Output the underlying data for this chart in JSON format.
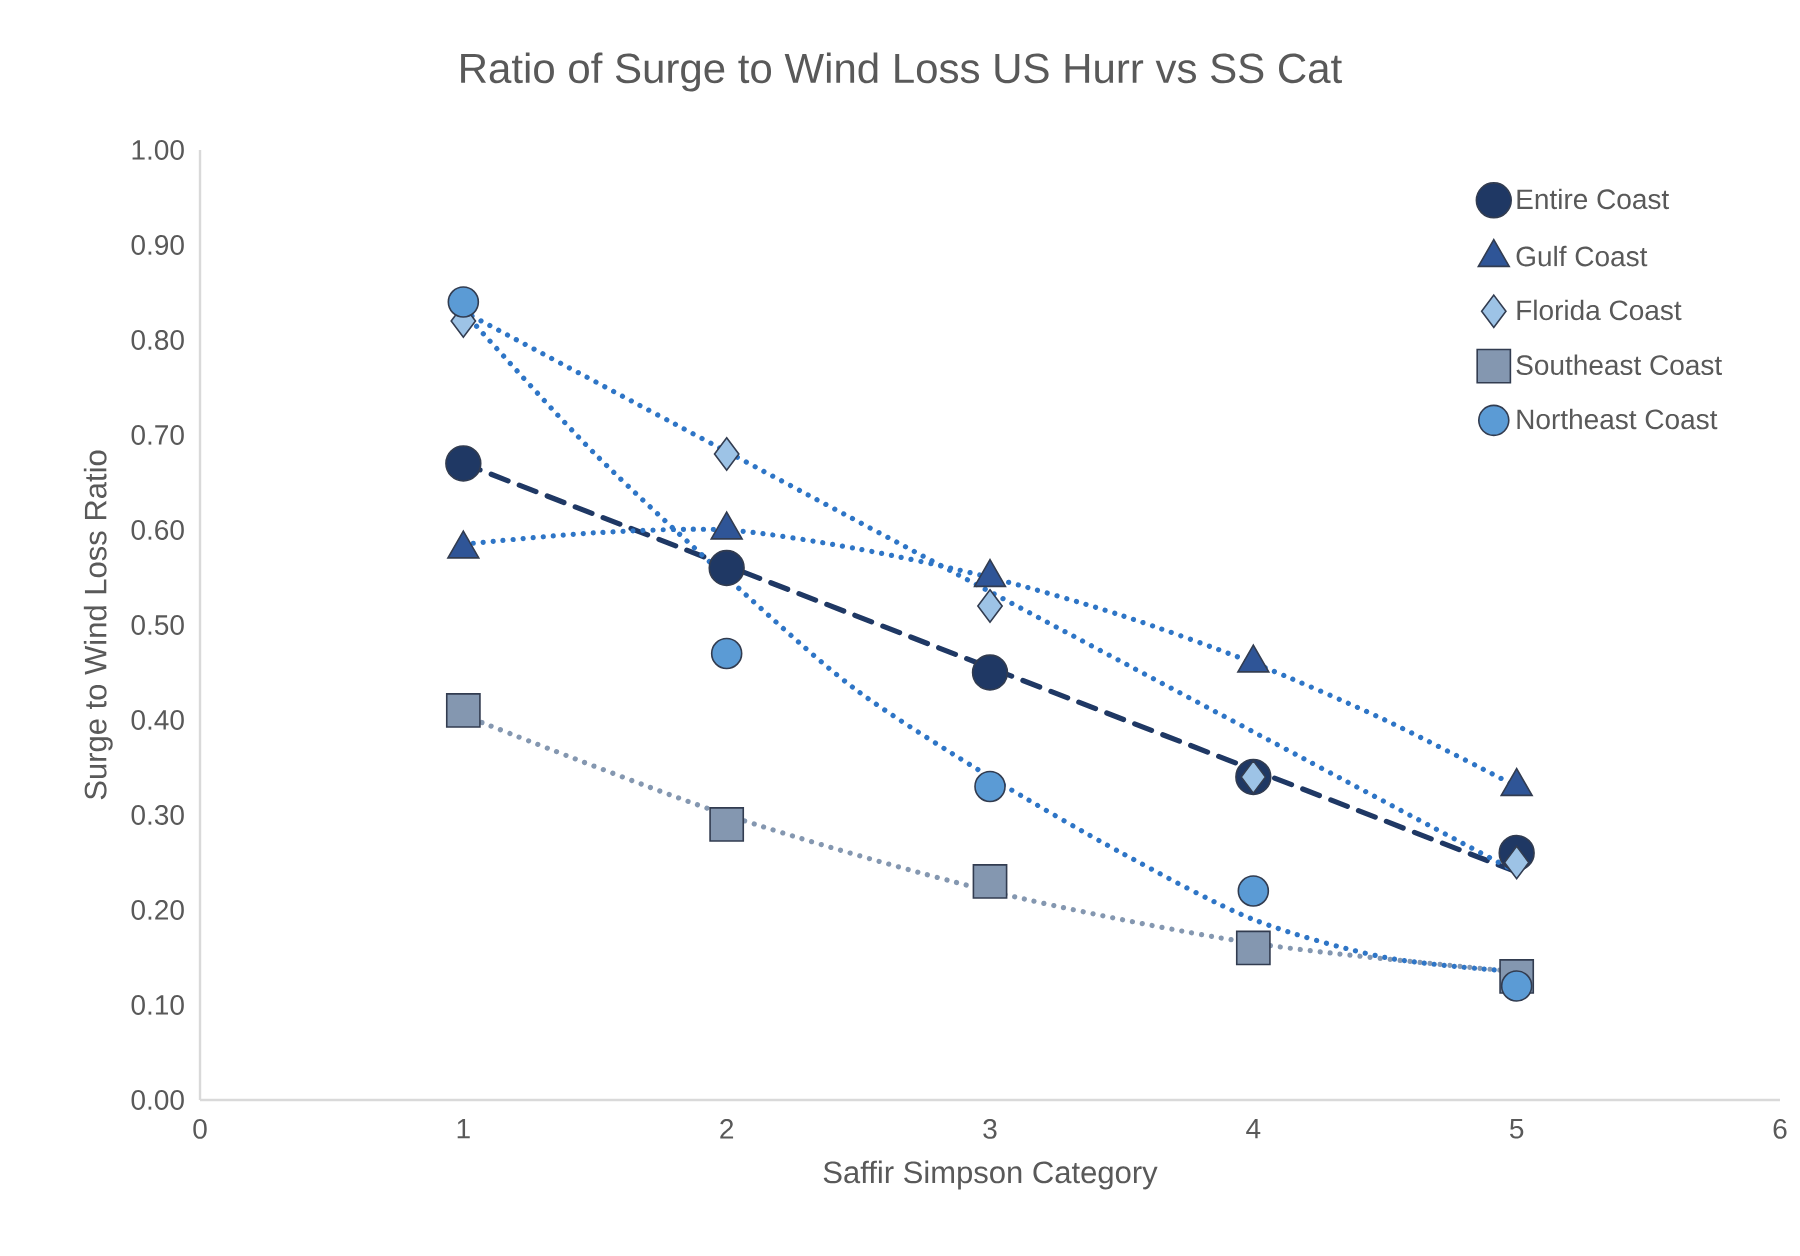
{
  "chart_data": {
    "type": "scatter",
    "title": "Ratio of Surge to Wind Loss US  Hurr vs SS Cat",
    "xlabel": "Saffir Simpson Category",
    "ylabel": "Surge to Wind Loss Ratio",
    "xlim": [
      0,
      6
    ],
    "xticks": [
      0,
      1,
      2,
      3,
      4,
      5,
      6
    ],
    "ylim": [
      0,
      1
    ],
    "yticks": [
      {
        "value": 0,
        "label": "0.00"
      },
      {
        "value": 0.1,
        "label": "0.10"
      },
      {
        "value": 0.2,
        "label": "0.20"
      },
      {
        "value": 0.3,
        "label": "0.30"
      },
      {
        "value": 0.4,
        "label": "0.40"
      },
      {
        "value": 0.5,
        "label": "0.50"
      },
      {
        "value": 0.6,
        "label": "0.60"
      },
      {
        "value": 0.7,
        "label": "0.70"
      },
      {
        "value": 0.8,
        "label": "0.80"
      },
      {
        "value": 0.9,
        "label": "0.90"
      },
      {
        "value": 1,
        "label": "1.00"
      }
    ],
    "grid": false,
    "legend": "top right",
    "x": [
      1,
      2,
      3,
      4,
      5
    ],
    "series": [
      {
        "name": "Entire Coast",
        "marker": "circle",
        "color": "#1f3864",
        "values": [
          0.67,
          0.56,
          0.45,
          0.34,
          0.26
        ]
      },
      {
        "name": "Gulf Coast",
        "marker": "triangle",
        "color": "#2f5597",
        "values": [
          0.58,
          0.6,
          0.55,
          0.46,
          0.33
        ]
      },
      {
        "name": "Florida Coast",
        "marker": "diamond",
        "color": "#9dc3e6",
        "values": [
          0.82,
          0.68,
          0.52,
          0.34,
          0.25
        ]
      },
      {
        "name": "Southeast Coast",
        "marker": "square",
        "color": "#8497b0",
        "values": [
          0.41,
          0.29,
          0.23,
          0.16,
          0.13
        ]
      },
      {
        "name": "Northeast Coast",
        "marker": "circle",
        "color": "#5b9bd5",
        "values": [
          0.84,
          0.47,
          0.33,
          0.22,
          0.12
        ]
      },
      {
        "type": "line",
        "line_style": "dashed",
        "color": "#1f3864",
        "x": [
          1,
          5
        ],
        "values": [
          0.67,
          0.24
        ]
      },
      {
        "type": "line",
        "line_style": "dotted",
        "color": "#2e75c6",
        "x": [
          1,
          1.5,
          2,
          2.5,
          3,
          3.5,
          4,
          4.5,
          5
        ],
        "values": [
          0.585,
          0.597,
          0.6,
          0.58,
          0.55,
          0.51,
          0.46,
          0.4,
          0.33
        ]
      },
      {
        "type": "line",
        "line_style": "dotted",
        "color": "#2e75c6",
        "x": [
          1,
          5
        ],
        "values": [
          0.83,
          0.24
        ]
      },
      {
        "type": "line",
        "line_style": "dotted",
        "color": "#8497b0",
        "x": [
          1,
          2,
          3,
          4,
          5
        ],
        "values": [
          0.405,
          0.3,
          0.22,
          0.165,
          0.135
        ]
      },
      {
        "type": "line",
        "line_style": "dotted",
        "color": "#2e75c6",
        "x": [
          1,
          1.5,
          2.1,
          2.5,
          3,
          3.5,
          4,
          4.5,
          5
        ],
        "values": [
          0.83,
          0.68,
          0.525,
          0.43,
          0.34,
          0.26,
          0.19,
          0.15,
          0.135
        ]
      }
    ]
  }
}
